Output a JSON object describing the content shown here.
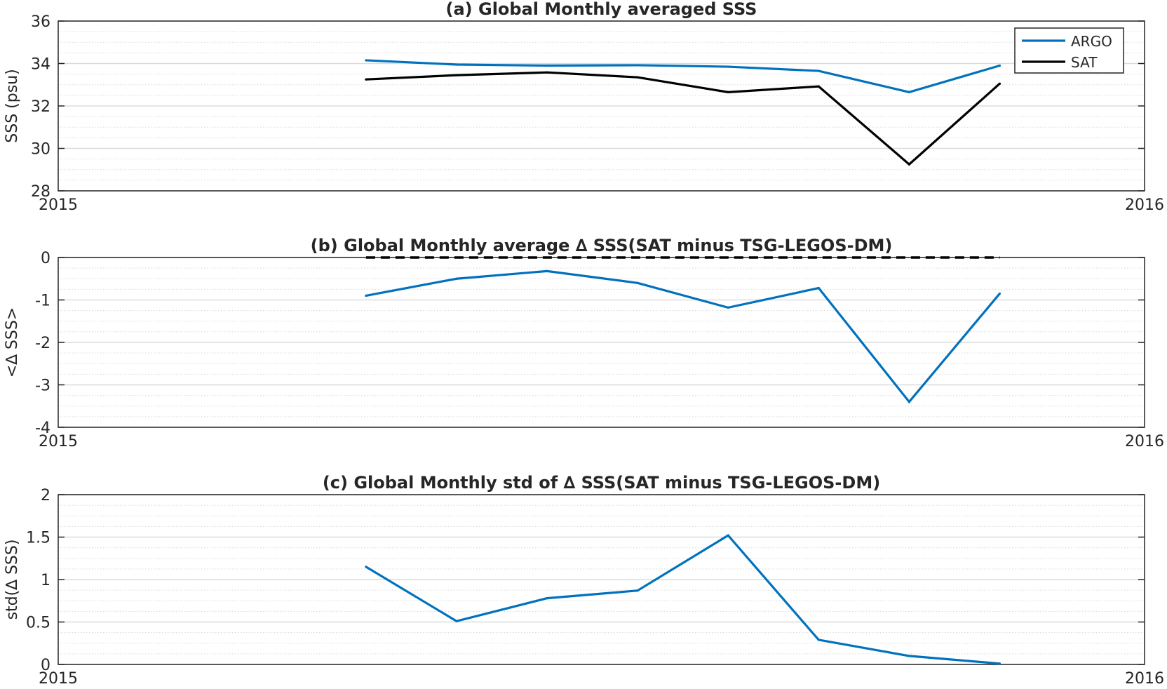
{
  "chart_data": [
    {
      "type": "line",
      "title": "(a) Global Monthly averaged SSS",
      "xlabel": "",
      "ylabel": "SSS (psu)",
      "xlim": [
        0,
        12
      ],
      "ylim": [
        28,
        36
      ],
      "x_tick_labels": [
        "2015",
        "2016"
      ],
      "y_ticks": [
        28,
        30,
        32,
        34,
        36
      ],
      "y_minor_step": 0.5,
      "grid": true,
      "legend": "top-right",
      "x": [
        3.4,
        4.4,
        5.4,
        6.4,
        7.4,
        8.4,
        9.4,
        10.4
      ],
      "series": [
        {
          "name": "ARGO",
          "color": "#0072BD",
          "values": [
            34.15,
            33.95,
            33.9,
            33.92,
            33.85,
            33.65,
            32.65,
            33.9
          ]
        },
        {
          "name": "SAT",
          "color": "#000000",
          "values": [
            33.25,
            33.45,
            33.58,
            33.35,
            32.65,
            32.92,
            29.25,
            33.05
          ]
        }
      ]
    },
    {
      "type": "line",
      "title": "(b) Global Monthly average ∆ SSS(SAT minus TSG-LEGOS-DM)",
      "xlabel": "",
      "ylabel": "<∆ SSS>",
      "xlim": [
        0,
        12
      ],
      "ylim": [
        -4,
        0
      ],
      "x_tick_labels": [
        "2015",
        "2016"
      ],
      "y_ticks": [
        -4,
        -3,
        -2,
        -1,
        0
      ],
      "y_minor_step": 0.25,
      "grid": true,
      "x": [
        3.4,
        4.4,
        5.4,
        6.4,
        7.4,
        8.4,
        9.4,
        10.4
      ],
      "series": [
        {
          "color": "#0072BD",
          "values": [
            -0.9,
            -0.5,
            -0.32,
            -0.6,
            -1.18,
            -0.72,
            -3.4,
            -0.85
          ]
        }
      ],
      "reference_line": {
        "y": 0,
        "x_range": [
          3.4,
          10.4
        ],
        "color": "#000000",
        "style": "dashed"
      }
    },
    {
      "type": "line",
      "title": "(c) Global Monthly std of ∆ SSS(SAT minus TSG-LEGOS-DM)",
      "xlabel": "",
      "ylabel": "std(∆ SSS)",
      "xlim": [
        0,
        12
      ],
      "ylim": [
        0,
        2
      ],
      "x_tick_labels": [
        "2015",
        "2016"
      ],
      "y_ticks": [
        0,
        0.5,
        1,
        1.5,
        2
      ],
      "y_minor_step": 0.125,
      "grid": true,
      "x": [
        3.4,
        4.4,
        5.4,
        6.4,
        7.4,
        8.4,
        9.4,
        10.4
      ],
      "series": [
        {
          "color": "#0072BD",
          "values": [
            1.15,
            0.51,
            0.78,
            0.87,
            1.52,
            0.29,
            0.1,
            0.01
          ]
        }
      ]
    }
  ]
}
